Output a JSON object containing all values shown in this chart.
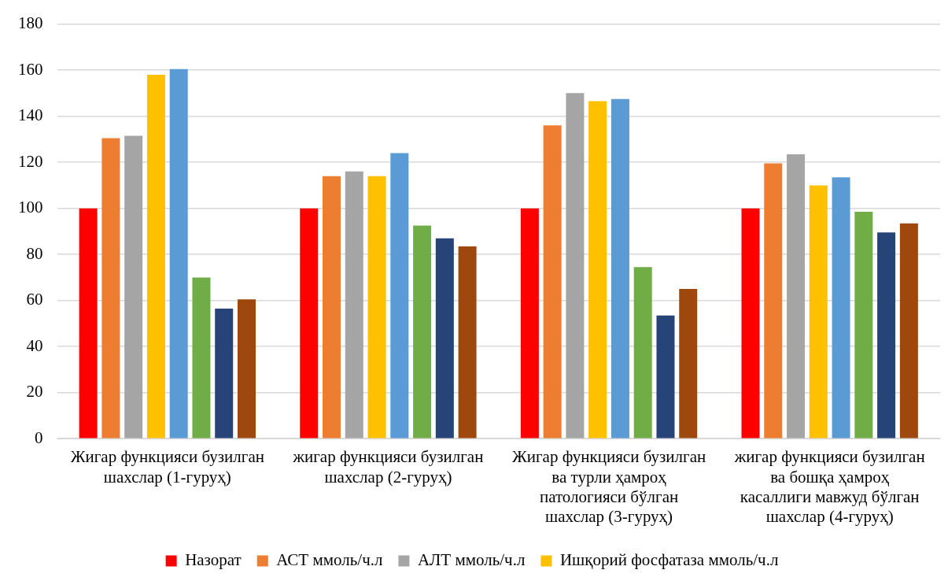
{
  "chart_data": {
    "type": "bar",
    "categories": [
      "Жигар функцияси бузилган шахслар (1-гуруҳ)",
      "жигар функцияси бузилган шахслар (2-гуруҳ)",
      "Жигар функцияси бузилган ва турли ҳамроҳ патологияси бўлган шахслар (3-гуруҳ)",
      "жигар функцияси бузилган ва бошқа ҳамроҳ касаллиги мавжуд бўлган шахслар (4-гуруҳ)"
    ],
    "series": [
      {
        "name": "Назорат",
        "color": "#ff0000",
        "values": [
          100,
          100,
          100,
          100
        ]
      },
      {
        "name": "АСТ ммоль/ч.л",
        "color": "#ed7d31",
        "values": [
          130.5,
          114,
          136,
          119.5
        ]
      },
      {
        "name": "АЛТ ммоль/ч.л",
        "color": "#a5a5a5",
        "values": [
          131.5,
          116,
          150,
          123.5
        ]
      },
      {
        "name": "Ишқорий фосфатаза ммоль/ч.л",
        "color": "#ffc000",
        "values": [
          158,
          114,
          146.5,
          110
        ]
      },
      {
        "color": "#5b9bd5",
        "values": [
          160.5,
          124,
          147.5,
          113.5
        ]
      },
      {
        "color": "#70ad47",
        "values": [
          70,
          92.5,
          74.5,
          98.5
        ]
      },
      {
        "color": "#264478",
        "values": [
          56.5,
          87,
          53.5,
          89.5
        ]
      },
      {
        "color": "#9e480e",
        "values": [
          60.5,
          83.5,
          65,
          93.5
        ]
      }
    ],
    "ylim": [
      0,
      180
    ],
    "yticks": [
      0,
      20,
      40,
      60,
      80,
      100,
      120,
      140,
      160,
      180
    ],
    "grid": "y",
    "legend": "bottom"
  }
}
